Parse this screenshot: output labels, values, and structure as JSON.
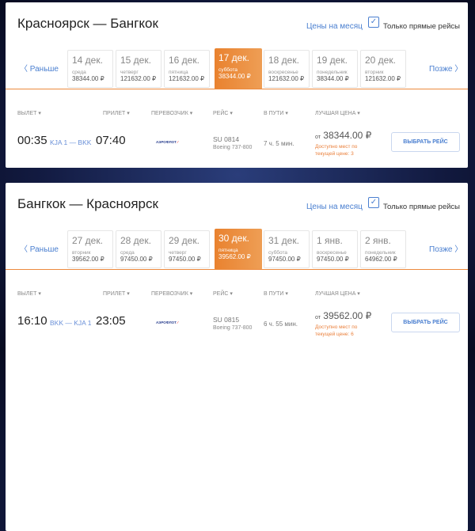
{
  "labels": {
    "month_prices": "Цены на месяц",
    "direct_only": "Только прямые рейсы",
    "earlier": "Раньше",
    "later": "Позже",
    "checkbox_mark": "✓",
    "headers": [
      "ВЫЛЕТ ▾",
      "ПРИЛЕТ ▾",
      "ПЕРЕВОЗЧИК ▾",
      "РЕЙС ▾",
      "В ПУТИ ▾",
      "ЛУЧШАЯ ЦЕНА ▾"
    ],
    "from": "от",
    "select": "ВЫБРАТЬ РЕЙС",
    "carrier_logo": "АЭРОФЛОТ"
  },
  "colors": {
    "accent": "#ec8a3e",
    "link": "#4a7fd0"
  },
  "direct_only_checked": true,
  "legs": [
    {
      "title": "Красноярск — Бангкок",
      "selected": 3,
      "dates": [
        {
          "d": "14 дек.",
          "w": "среда",
          "p": "38344.00 ₽"
        },
        {
          "d": "15 дек.",
          "w": "четверг",
          "p": "121632.00 ₽"
        },
        {
          "d": "16 дек.",
          "w": "пятница",
          "p": "121632.00 ₽"
        },
        {
          "d": "17 дек.",
          "w": "суббота",
          "p": "38344.00 ₽"
        },
        {
          "d": "18 дек.",
          "w": "воскресенье",
          "p": "121632.00 ₽"
        },
        {
          "d": "19 дек.",
          "w": "понедельник",
          "p": "38344.00 ₽"
        },
        {
          "d": "20 дек.",
          "w": "вторник",
          "p": "121632.00 ₽"
        }
      ],
      "flight": {
        "dep": "00:35",
        "route": "KJA 1 — BKK",
        "arr": "07:40",
        "number": "SU 0814",
        "aircraft": "Boeing 737-800",
        "duration": "7 ч. 5 мин.",
        "price": "38344.00 ₽",
        "avail": "Доступно мест по текущей цене: 3"
      }
    },
    {
      "title": "Бангкок — Красноярск",
      "selected": 3,
      "dates": [
        {
          "d": "27 дек.",
          "w": "вторник",
          "p": "39562.00 ₽"
        },
        {
          "d": "28 дек.",
          "w": "среда",
          "p": "97450.00 ₽"
        },
        {
          "d": "29 дек.",
          "w": "четверг",
          "p": "97450.00 ₽"
        },
        {
          "d": "30 дек.",
          "w": "пятница",
          "p": "39562.00 ₽"
        },
        {
          "d": "31 дек.",
          "w": "суббота",
          "p": "97450.00 ₽"
        },
        {
          "d": "1 янв.",
          "w": "воскресенье",
          "p": "97450.00 ₽"
        },
        {
          "d": "2 янв.",
          "w": "понедельник",
          "p": "64962.00 ₽"
        }
      ],
      "flight": {
        "dep": "16:10",
        "route": "BKK — KJA 1",
        "arr": "23:05",
        "number": "SU 0815",
        "aircraft": "Boeing 737-800",
        "duration": "6 ч. 55 мин.",
        "price": "39562.00 ₽",
        "avail": "Доступно мест по текущей цене: 6"
      }
    }
  ]
}
